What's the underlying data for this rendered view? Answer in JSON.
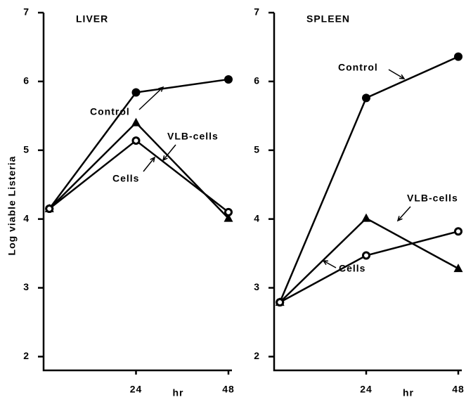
{
  "chart_data": [
    {
      "type": "line",
      "title": "LIVER",
      "ylabel": "Log viable Listeria",
      "xlabel": "hr",
      "x": [
        1.5,
        24,
        48
      ],
      "xlim": [
        0,
        48
      ],
      "xticks": [
        24,
        48
      ],
      "ylim": [
        1.8,
        7
      ],
      "yticks": [
        2,
        3,
        4,
        5,
        6,
        7
      ],
      "series": [
        {
          "name": "Control",
          "color": "#000000",
          "marker": "circle",
          "values": [
            4.15,
            5.84,
            6.03
          ]
        },
        {
          "name": "VLB-cells",
          "color": "#000000",
          "marker": "triangle",
          "values": [
            4.15,
            5.4,
            4.01
          ]
        },
        {
          "name": "Cells",
          "color": "#000000",
          "marker": "open-circle",
          "values": [
            4.15,
            5.14,
            4.1
          ]
        }
      ]
    },
    {
      "type": "line",
      "title": "SPLEEN",
      "xlabel": "hr",
      "x": [
        1.5,
        24,
        48
      ],
      "xlim": [
        0,
        48
      ],
      "xticks": [
        24,
        48
      ],
      "ylim": [
        1.8,
        7
      ],
      "yticks": [
        2,
        3,
        4,
        5,
        6,
        7
      ],
      "series": [
        {
          "name": "Control",
          "color": "#000000",
          "marker": "circle",
          "values": [
            2.79,
            5.76,
            6.36
          ]
        },
        {
          "name": "VLB-cells",
          "color": "#000000",
          "marker": "triangle",
          "values": [
            2.79,
            4.01,
            3.28
          ]
        },
        {
          "name": "Cells",
          "color": "#000000",
          "marker": "open-circle",
          "values": [
            2.79,
            3.47,
            3.82
          ]
        }
      ]
    }
  ]
}
